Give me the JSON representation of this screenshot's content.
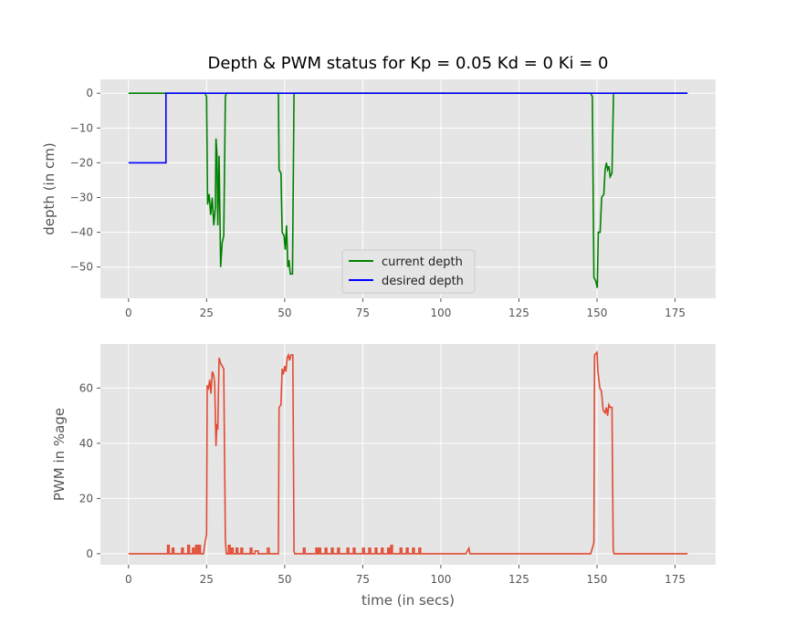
{
  "figure": {
    "title": "Depth & PWM status for Kp = 0.05 Kd = 0 Ki = 0",
    "background": "#ffffff",
    "axes_facecolor": "#e5e5e5",
    "grid_color": "#ffffff"
  },
  "chart_data": [
    {
      "type": "line",
      "title": "Depth & PWM status for Kp = 0.05 Kd = 0 Ki = 0",
      "xlabel": "",
      "ylabel": "depth (in cm)",
      "xlim": [
        -9,
        188
      ],
      "ylim": [
        -59,
        4
      ],
      "xticks": [
        0,
        25,
        50,
        75,
        100,
        125,
        150,
        175
      ],
      "yticks": [
        0,
        -10,
        -20,
        -30,
        -40,
        -50
      ],
      "grid": true,
      "legend": "lower-center",
      "series": [
        {
          "name": "current depth",
          "color": "#008000",
          "points": [
            [
              0,
              0
            ],
            [
              24.5,
              0
            ],
            [
              25,
              -1
            ],
            [
              25.3,
              -32
            ],
            [
              25.8,
              -29
            ],
            [
              26.3,
              -35
            ],
            [
              26.8,
              -30
            ],
            [
              27.3,
              -38
            ],
            [
              27.8,
              -33
            ],
            [
              28,
              -13
            ],
            [
              28.3,
              -17
            ],
            [
              28.6,
              -38
            ],
            [
              29,
              -18
            ],
            [
              29.5,
              -50
            ],
            [
              30,
              -43
            ],
            [
              30.5,
              -41
            ],
            [
              31,
              -1
            ],
            [
              31.3,
              0
            ],
            [
              48,
              0
            ],
            [
              48.2,
              -22
            ],
            [
              48.8,
              -23
            ],
            [
              49.2,
              -40
            ],
            [
              49.8,
              -41
            ],
            [
              50.2,
              -45
            ],
            [
              50.6,
              -38
            ],
            [
              51,
              -50
            ],
            [
              51.4,
              -48
            ],
            [
              51.8,
              -52
            ],
            [
              52.5,
              -52
            ],
            [
              53,
              0
            ],
            [
              148,
              0
            ],
            [
              148.5,
              -1
            ],
            [
              149,
              -53
            ],
            [
              149.6,
              -54
            ],
            [
              150.1,
              -56
            ],
            [
              150.4,
              -40
            ],
            [
              151,
              -40
            ],
            [
              151.5,
              -30
            ],
            [
              152.2,
              -29
            ],
            [
              152.6,
              -22
            ],
            [
              153,
              -20
            ],
            [
              153.4,
              -22
            ],
            [
              153.8,
              -21
            ],
            [
              154.2,
              -24
            ],
            [
              154.8,
              -23
            ],
            [
              155.3,
              0
            ],
            [
              179,
              0
            ]
          ]
        },
        {
          "name": "desired depth",
          "color": "#0000ff",
          "points": [
            [
              0,
              -20
            ],
            [
              12,
              -20
            ],
            [
              12,
              0
            ],
            [
              179,
              0
            ]
          ]
        }
      ]
    },
    {
      "type": "line",
      "title": "",
      "xlabel": "time (in secs)",
      "ylabel": "PWM in %age",
      "xlim": [
        -9,
        188
      ],
      "ylim": [
        -4,
        76
      ],
      "xticks": [
        0,
        25,
        50,
        75,
        100,
        125,
        150,
        175
      ],
      "yticks": [
        0,
        20,
        40,
        60
      ],
      "grid": true,
      "series": [
        {
          "name": "",
          "color": "#e24a33",
          "points": [
            [
              0,
              0
            ],
            [
              12.5,
              0
            ],
            [
              12.5,
              3
            ],
            [
              13,
              3
            ],
            [
              13,
              0
            ],
            [
              14,
              0
            ],
            [
              14,
              2
            ],
            [
              14.5,
              2
            ],
            [
              14.5,
              0
            ],
            [
              17,
              0
            ],
            [
              17,
              2
            ],
            [
              17.5,
              2
            ],
            [
              17.5,
              0
            ],
            [
              19,
              0
            ],
            [
              19,
              3
            ],
            [
              19.5,
              3
            ],
            [
              19.5,
              0
            ],
            [
              20.5,
              0
            ],
            [
              20.5,
              2
            ],
            [
              21,
              2
            ],
            [
              21,
              0
            ],
            [
              21.5,
              0
            ],
            [
              21.5,
              3
            ],
            [
              22,
              3
            ],
            [
              22,
              0
            ],
            [
              22.5,
              0
            ],
            [
              22.5,
              3
            ],
            [
              23,
              3
            ],
            [
              23,
              0
            ],
            [
              24,
              0
            ],
            [
              24.5,
              4
            ],
            [
              25,
              7
            ],
            [
              25.2,
              61
            ],
            [
              25.6,
              60
            ],
            [
              26,
              63
            ],
            [
              26.4,
              58
            ],
            [
              26.8,
              66
            ],
            [
              27.2,
              65
            ],
            [
              27.6,
              62
            ],
            [
              28,
              39
            ],
            [
              28.3,
              47
            ],
            [
              28.6,
              45
            ],
            [
              29,
              71
            ],
            [
              29.5,
              69
            ],
            [
              30,
              68
            ],
            [
              30.5,
              67
            ],
            [
              31,
              5
            ],
            [
              31.3,
              0
            ],
            [
              32,
              0
            ],
            [
              32,
              3
            ],
            [
              32.5,
              3
            ],
            [
              32.5,
              0
            ],
            [
              33,
              0
            ],
            [
              33,
              2
            ],
            [
              33.5,
              2
            ],
            [
              33.5,
              0
            ],
            [
              34.5,
              0
            ],
            [
              34.5,
              2
            ],
            [
              35,
              2
            ],
            [
              35,
              0
            ],
            [
              36,
              0
            ],
            [
              36,
              2
            ],
            [
              36.5,
              2
            ],
            [
              36.5,
              0
            ],
            [
              39,
              0
            ],
            [
              39,
              2
            ],
            [
              39.5,
              2
            ],
            [
              39.5,
              0
            ],
            [
              40.5,
              0
            ],
            [
              40.5,
              1
            ],
            [
              41.5,
              1
            ],
            [
              41.5,
              0
            ],
            [
              44.5,
              0
            ],
            [
              44.5,
              2
            ],
            [
              45,
              2
            ],
            [
              45,
              0
            ],
            [
              48,
              0
            ],
            [
              48.2,
              53
            ],
            [
              48.8,
              54
            ],
            [
              49.2,
              67
            ],
            [
              49.6,
              65
            ],
            [
              50,
              68
            ],
            [
              50.4,
              66
            ],
            [
              50.8,
              71
            ],
            [
              51.2,
              72
            ],
            [
              51.6,
              70
            ],
            [
              52,
              72
            ],
            [
              52.6,
              72
            ],
            [
              53,
              1
            ],
            [
              53.2,
              0
            ],
            [
              56,
              0
            ],
            [
              56,
              2
            ],
            [
              56.5,
              2
            ],
            [
              56.5,
              0
            ],
            [
              60,
              0
            ],
            [
              60,
              2
            ],
            [
              60.5,
              2
            ],
            [
              60.5,
              0
            ],
            [
              61,
              0
            ],
            [
              61,
              2
            ],
            [
              61.5,
              2
            ],
            [
              61.5,
              0
            ],
            [
              63,
              0
            ],
            [
              63,
              2
            ],
            [
              63.5,
              2
            ],
            [
              63.5,
              0
            ],
            [
              65,
              0
            ],
            [
              65,
              2
            ],
            [
              65.5,
              2
            ],
            [
              65.5,
              0
            ],
            [
              67,
              0
            ],
            [
              67,
              2
            ],
            [
              67.5,
              2
            ],
            [
              67.5,
              0
            ],
            [
              70,
              0
            ],
            [
              70,
              2
            ],
            [
              70.5,
              2
            ],
            [
              70.5,
              0
            ],
            [
              72,
              0
            ],
            [
              72,
              2
            ],
            [
              72.5,
              2
            ],
            [
              72.5,
              0
            ],
            [
              75,
              0
            ],
            [
              75,
              2
            ],
            [
              75.5,
              2
            ],
            [
              75.5,
              0
            ],
            [
              77,
              0
            ],
            [
              77,
              2
            ],
            [
              77.5,
              2
            ],
            [
              77.5,
              0
            ],
            [
              79,
              0
            ],
            [
              79,
              2
            ],
            [
              79.5,
              2
            ],
            [
              79.5,
              0
            ],
            [
              81,
              0
            ],
            [
              81,
              2
            ],
            [
              81.5,
              2
            ],
            [
              81.5,
              0
            ],
            [
              83,
              0
            ],
            [
              83,
              2
            ],
            [
              83.5,
              2
            ],
            [
              83.5,
              0
            ],
            [
              84,
              0
            ],
            [
              84,
              3
            ],
            [
              84.5,
              3
            ],
            [
              84.5,
              0
            ],
            [
              87,
              0
            ],
            [
              87,
              2
            ],
            [
              87.5,
              2
            ],
            [
              87.5,
              0
            ],
            [
              89,
              0
            ],
            [
              89,
              2
            ],
            [
              89.5,
              2
            ],
            [
              89.5,
              0
            ],
            [
              91,
              0
            ],
            [
              91,
              2
            ],
            [
              91.5,
              2
            ],
            [
              91.5,
              0
            ],
            [
              93,
              0
            ],
            [
              93,
              2
            ],
            [
              93.5,
              2
            ],
            [
              93.5,
              0
            ],
            [
              108,
              0
            ],
            [
              109,
              2
            ],
            [
              109.3,
              0
            ],
            [
              148,
              0
            ],
            [
              148.5,
              2
            ],
            [
              149,
              4
            ],
            [
              149.2,
              72
            ],
            [
              150,
              73
            ],
            [
              150.3,
              66
            ],
            [
              150.9,
              60
            ],
            [
              151.4,
              59
            ],
            [
              152,
              52
            ],
            [
              152.6,
              51
            ],
            [
              153,
              53
            ],
            [
              153.4,
              50
            ],
            [
              153.8,
              54
            ],
            [
              154.2,
              53
            ],
            [
              154.8,
              53
            ],
            [
              155.2,
              1
            ],
            [
              155.5,
              0
            ],
            [
              179,
              0
            ]
          ]
        }
      ]
    }
  ]
}
